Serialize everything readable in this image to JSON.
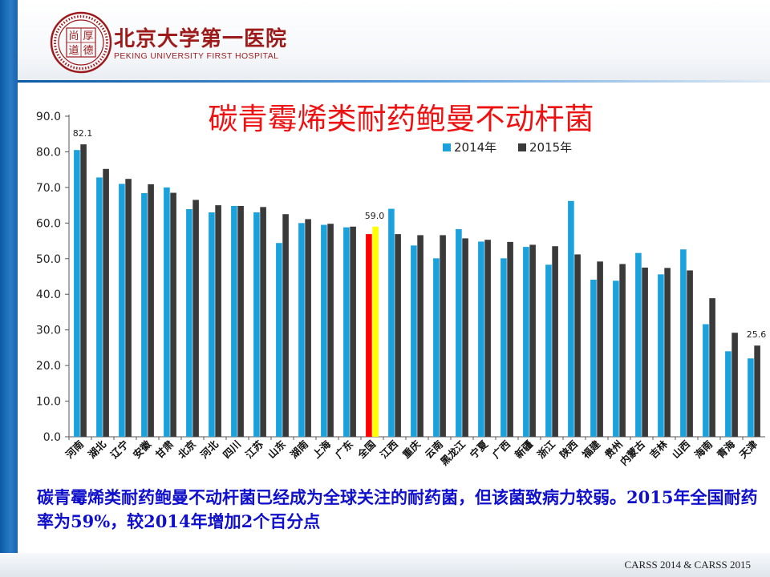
{
  "header": {
    "logo_text": [
      "尚",
      "厚",
      "道",
      "德"
    ],
    "brand_cn": "北京大学第一医院",
    "brand_en": "PEKING UNIVERSITY FIRST HOSPITAL"
  },
  "chart_data": {
    "type": "bar",
    "title": "碳青霉烯类耐药鲍曼不动杆菌",
    "categories": [
      "河南",
      "湖北",
      "辽宁",
      "安徽",
      "甘肃",
      "北京",
      "河北",
      "四川",
      "江苏",
      "山东",
      "湖南",
      "上海",
      "广东",
      "全国",
      "江西",
      "重庆",
      "云南",
      "黑龙江",
      "宁夏",
      "广西",
      "新疆",
      "浙江",
      "陕西",
      "福建",
      "贵州",
      "内蒙古",
      "吉林",
      "山西",
      "海南",
      "青海",
      "天津"
    ],
    "series": [
      {
        "name": "2014年",
        "color": "#1ba1dc",
        "values": [
          80.5,
          72.8,
          71.0,
          68.4,
          70.0,
          63.9,
          63.0,
          64.8,
          63.0,
          54.4,
          60.0,
          59.5,
          58.8,
          56.9,
          64.0,
          53.7,
          50.1,
          58.3,
          54.8,
          50.1,
          53.3,
          48.3,
          66.2,
          44.1,
          43.8,
          51.6,
          45.6,
          52.6,
          31.6,
          24.0,
          22.0
        ]
      },
      {
        "name": "2015年",
        "color": "#3a3a3a",
        "values": [
          82.1,
          75.2,
          72.4,
          70.9,
          68.5,
          66.5,
          65.0,
          64.8,
          64.5,
          62.5,
          61.1,
          59.8,
          59.0,
          59.0,
          56.9,
          56.6,
          56.6,
          55.7,
          55.3,
          54.7,
          53.9,
          53.5,
          51.2,
          49.2,
          48.5,
          47.5,
          47.4,
          46.7,
          38.9,
          29.2,
          25.6
        ]
      }
    ],
    "highlight": {
      "category": "全国",
      "colors": [
        "#ff0000",
        "#ffff00"
      ]
    },
    "data_labels": [
      {
        "category": "河南",
        "text": "82.1"
      },
      {
        "category": "全国",
        "text": "59.0"
      },
      {
        "category": "天津",
        "text": "25.6"
      }
    ],
    "ylim": [
      0,
      90
    ],
    "yticks": [
      "0.0",
      "10.0",
      "20.0",
      "30.0",
      "40.0",
      "50.0",
      "60.0",
      "70.0",
      "80.0",
      "90.0"
    ],
    "legend_position": "top-right",
    "grid": false
  },
  "caption": "碳青霉烯类耐药鲍曼不动杆菌已经成为全球关注的耐药菌，但该菌致病力较弱。2015年全国耐药率为59%，较2014年增加2个百分点",
  "footer": "CARSS 2014 & CARSS 2015"
}
